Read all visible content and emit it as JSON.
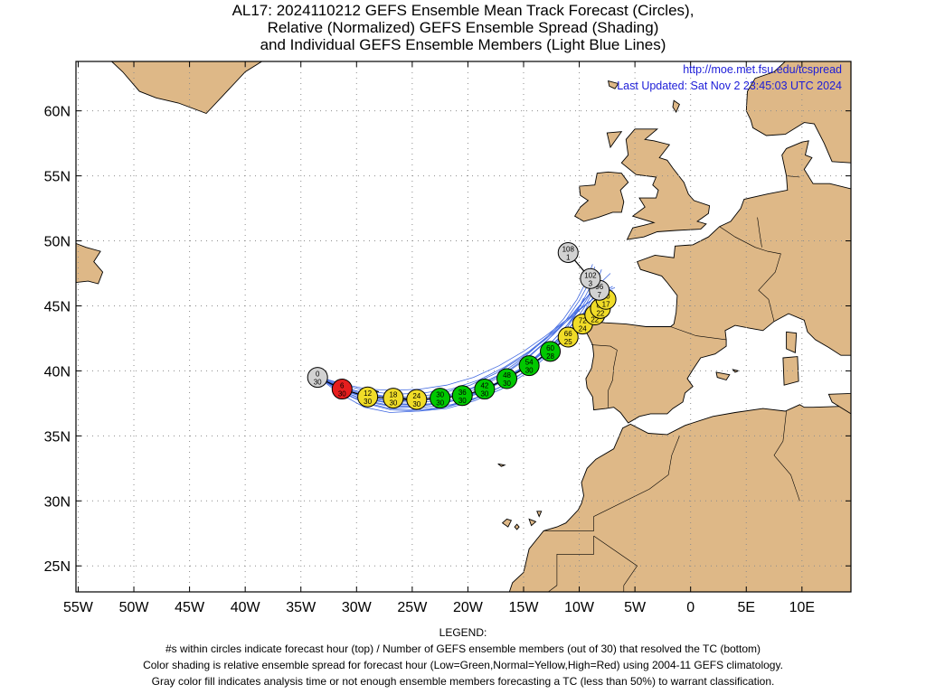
{
  "title": {
    "line1": "AL17: 2024110212 GEFS Ensemble Mean Track Forecast (Circles),",
    "line2": "Relative (Normalized) GEFS Ensemble Spread (Shading)",
    "line3": "and Individual GEFS Ensemble Members (Light Blue Lines)"
  },
  "header_info": {
    "url": "http://moe.met.fsu.edu/tcspread",
    "updated": "Last Updated: Sat Nov 2 23:45:03 UTC 2024"
  },
  "axes": {
    "lat_labels": [
      "60N",
      "55N",
      "50N",
      "45N",
      "40N",
      "35N",
      "30N",
      "25N"
    ],
    "lon_labels": [
      "55W",
      "50W",
      "45W",
      "40W",
      "35W",
      "30W",
      "25W",
      "20W",
      "15W",
      "10W",
      "5W",
      "0",
      "5E",
      "10E"
    ],
    "lat_range": [
      23,
      63.8
    ],
    "lon_range": [
      -55.2,
      14.4
    ]
  },
  "colors": {
    "land": "#deb887",
    "ocean": "#ffffff",
    "member_lines": "#4169e1",
    "green": "#00c800",
    "yellow": "#f0dc28",
    "red": "#e61e1e",
    "gray": "#d2d2d2"
  },
  "track": [
    {
      "hour": "0",
      "members": "30",
      "lat": 39.5,
      "lon": -33.5,
      "color": "gray"
    },
    {
      "hour": "6",
      "members": "30",
      "lat": 38.6,
      "lon": -31.3,
      "color": "red"
    },
    {
      "hour": "12",
      "members": "30",
      "lat": 38.0,
      "lon": -29.0,
      "color": "yellow"
    },
    {
      "hour": "18",
      "members": "30",
      "lat": 37.9,
      "lon": -26.7,
      "color": "yellow"
    },
    {
      "hour": "24",
      "members": "30",
      "lat": 37.8,
      "lon": -24.6,
      "color": "yellow"
    },
    {
      "hour": "30",
      "members": "30",
      "lat": 37.9,
      "lon": -22.5,
      "color": "green"
    },
    {
      "hour": "36",
      "members": "30",
      "lat": 38.1,
      "lon": -20.5,
      "color": "green"
    },
    {
      "hour": "42",
      "members": "30",
      "lat": 38.6,
      "lon": -18.5,
      "color": "green"
    },
    {
      "hour": "48",
      "members": "30",
      "lat": 39.4,
      "lon": -16.5,
      "color": "green"
    },
    {
      "hour": "54",
      "members": "30",
      "lat": 40.4,
      "lon": -14.5,
      "color": "green"
    },
    {
      "hour": "60",
      "members": "28",
      "lat": 41.5,
      "lon": -12.6,
      "color": "green"
    },
    {
      "hour": "66",
      "members": "25",
      "lat": 42.6,
      "lon": -11.0,
      "color": "yellow"
    },
    {
      "hour": "72",
      "members": "24",
      "lat": 43.6,
      "lon": -9.7,
      "color": "yellow"
    },
    {
      "hour": "78",
      "members": "22",
      "lat": 44.3,
      "lon": -8.6,
      "color": "yellow"
    },
    {
      "hour": "84",
      "members": "22",
      "lat": 44.8,
      "lon": -8.1,
      "color": "yellow"
    },
    {
      "hour": "90",
      "members": "17",
      "lat": 45.5,
      "lon": -7.6,
      "color": "yellow"
    },
    {
      "hour": "96",
      "members": "7",
      "lat": 46.2,
      "lon": -8.2,
      "color": "gray"
    },
    {
      "hour": "102",
      "members": "3",
      "lat": 47.1,
      "lon": -9.0,
      "color": "gray"
    },
    {
      "hour": "108",
      "members": "1",
      "lat": 49.1,
      "lon": -11.0,
      "color": "gray"
    }
  ],
  "member_tracks": [
    [
      [
        -33.6,
        39.6
      ],
      [
        -31.5,
        38.7
      ],
      [
        -29.0,
        37.9
      ],
      [
        -26.5,
        37.6
      ],
      [
        -24.0,
        37.6
      ],
      [
        -21.5,
        37.8
      ],
      [
        -19.0,
        38.4
      ],
      [
        -16.5,
        39.5
      ],
      [
        -14.0,
        40.9
      ],
      [
        -11.8,
        42.3
      ],
      [
        -10.0,
        43.7
      ],
      [
        -8.8,
        44.9
      ],
      [
        -8.0,
        45.9
      ]
    ],
    [
      [
        -33.6,
        39.6
      ],
      [
        -31.4,
        38.5
      ],
      [
        -29.0,
        37.6
      ],
      [
        -26.5,
        37.2
      ],
      [
        -24.0,
        37.2
      ],
      [
        -21.5,
        37.4
      ],
      [
        -19.0,
        38.0
      ],
      [
        -16.5,
        39.0
      ],
      [
        -14.3,
        40.3
      ],
      [
        -12.3,
        41.9
      ],
      [
        -10.8,
        43.4
      ],
      [
        -9.6,
        44.8
      ],
      [
        -8.7,
        46.2
      ]
    ],
    [
      [
        -33.6,
        39.6
      ],
      [
        -31.2,
        38.9
      ],
      [
        -28.8,
        38.4
      ],
      [
        -26.5,
        38.2
      ],
      [
        -24.0,
        38.3
      ],
      [
        -21.5,
        38.6
      ],
      [
        -19.0,
        39.3
      ],
      [
        -16.7,
        40.3
      ],
      [
        -14.5,
        41.5
      ],
      [
        -12.5,
        42.9
      ],
      [
        -10.8,
        44.2
      ],
      [
        -9.5,
        45.5
      ],
      [
        -8.3,
        46.6
      ],
      [
        -7.2,
        47.5
      ]
    ],
    [
      [
        -33.6,
        39.6
      ],
      [
        -31.6,
        38.3
      ],
      [
        -29.3,
        37.2
      ],
      [
        -27.0,
        36.8
      ],
      [
        -24.5,
        36.9
      ],
      [
        -22.0,
        37.2
      ],
      [
        -19.5,
        37.8
      ],
      [
        -17.0,
        38.8
      ],
      [
        -14.8,
        40.0
      ],
      [
        -13.0,
        41.4
      ],
      [
        -11.5,
        42.8
      ],
      [
        -10.4,
        44.2
      ],
      [
        -9.6,
        45.6
      ]
    ],
    [
      [
        -33.6,
        39.6
      ],
      [
        -31.3,
        38.8
      ],
      [
        -29.0,
        38.2
      ],
      [
        -26.8,
        37.9
      ],
      [
        -24.4,
        37.9
      ],
      [
        -22.0,
        38.1
      ],
      [
        -19.6,
        38.7
      ],
      [
        -17.2,
        39.7
      ],
      [
        -15.0,
        41.0
      ],
      [
        -13.0,
        42.5
      ],
      [
        -11.4,
        44.0
      ],
      [
        -10.2,
        45.5
      ],
      [
        -9.3,
        47.0
      ],
      [
        -8.8,
        48.2
      ]
    ],
    [
      [
        -33.6,
        39.6
      ],
      [
        -31.5,
        38.6
      ],
      [
        -29.2,
        37.9
      ],
      [
        -26.8,
        37.5
      ],
      [
        -24.3,
        37.4
      ],
      [
        -21.8,
        37.6
      ],
      [
        -19.3,
        38.2
      ],
      [
        -16.9,
        39.2
      ],
      [
        -14.6,
        40.5
      ],
      [
        -12.6,
        41.9
      ],
      [
        -10.9,
        43.3
      ],
      [
        -9.5,
        44.5
      ],
      [
        -8.3,
        45.5
      ],
      [
        -7.0,
        46.2
      ]
    ],
    [
      [
        -33.6,
        39.6
      ],
      [
        -31.4,
        38.7
      ],
      [
        -29.1,
        38.0
      ],
      [
        -26.7,
        37.7
      ],
      [
        -24.2,
        37.7
      ],
      [
        -21.7,
        38.0
      ],
      [
        -19.2,
        38.6
      ],
      [
        -16.8,
        39.7
      ],
      [
        -14.6,
        41.0
      ],
      [
        -12.8,
        42.4
      ],
      [
        -11.2,
        43.9
      ],
      [
        -10.0,
        45.4
      ],
      [
        -9.1,
        46.8
      ],
      [
        -8.6,
        48.0
      ]
    ],
    [
      [
        -33.6,
        39.6
      ],
      [
        -31.2,
        38.6
      ],
      [
        -28.9,
        37.8
      ],
      [
        -26.4,
        37.4
      ],
      [
        -23.9,
        37.4
      ],
      [
        -21.4,
        37.7
      ],
      [
        -18.9,
        38.4
      ],
      [
        -16.5,
        39.4
      ],
      [
        -14.4,
        40.7
      ],
      [
        -12.6,
        42.1
      ],
      [
        -11.0,
        43.6
      ],
      [
        -9.7,
        45.0
      ],
      [
        -8.6,
        46.5
      ],
      [
        -8.0,
        47.8
      ]
    ],
    [
      [
        -33.6,
        39.6
      ],
      [
        -31.5,
        38.8
      ],
      [
        -29.3,
        38.3
      ],
      [
        -27.0,
        38.0
      ],
      [
        -24.6,
        38.0
      ],
      [
        -22.2,
        38.3
      ],
      [
        -19.8,
        38.9
      ],
      [
        -17.5,
        39.8
      ],
      [
        -15.2,
        41.0
      ],
      [
        -13.2,
        42.3
      ],
      [
        -11.4,
        43.6
      ],
      [
        -9.8,
        44.8
      ],
      [
        -8.4,
        45.8
      ],
      [
        -7.0,
        46.5
      ]
    ],
    [
      [
        -33.6,
        39.6
      ],
      [
        -31.6,
        38.5
      ],
      [
        -29.4,
        37.6
      ],
      [
        -27.0,
        37.1
      ],
      [
        -24.6,
        37.0
      ],
      [
        -22.1,
        37.2
      ],
      [
        -19.6,
        37.8
      ],
      [
        -17.2,
        38.7
      ],
      [
        -15.0,
        39.9
      ],
      [
        -13.0,
        41.2
      ],
      [
        -11.3,
        42.6
      ],
      [
        -9.9,
        44.0
      ],
      [
        -8.8,
        45.3
      ]
    ],
    [
      [
        -33.6,
        39.6
      ],
      [
        -31.3,
        38.7
      ],
      [
        -29.0,
        38.1
      ],
      [
        -26.6,
        37.8
      ],
      [
        -24.1,
        37.8
      ],
      [
        -21.6,
        38.1
      ],
      [
        -19.1,
        38.8
      ],
      [
        -16.6,
        39.9
      ],
      [
        -14.3,
        41.3
      ],
      [
        -12.3,
        42.8
      ],
      [
        -10.6,
        44.3
      ],
      [
        -9.2,
        45.8
      ],
      [
        -8.1,
        47.2
      ]
    ],
    [
      [
        -33.6,
        39.6
      ],
      [
        -31.4,
        38.5
      ],
      [
        -29.1,
        37.7
      ],
      [
        -26.7,
        37.3
      ],
      [
        -24.2,
        37.3
      ],
      [
        -21.7,
        37.6
      ],
      [
        -19.2,
        38.2
      ],
      [
        -16.8,
        39.2
      ],
      [
        -14.6,
        40.5
      ],
      [
        -12.7,
        42.0
      ],
      [
        -11.1,
        43.5
      ],
      [
        -9.9,
        45.0
      ],
      [
        -9.0,
        46.5
      ],
      [
        -8.4,
        47.6
      ]
    ],
    [
      [
        -33.6,
        39.6
      ],
      [
        -31.3,
        39.0
      ],
      [
        -29.0,
        38.6
      ],
      [
        -26.7,
        38.5
      ],
      [
        -24.3,
        38.6
      ],
      [
        -21.9,
        38.9
      ],
      [
        -19.5,
        39.5
      ],
      [
        -17.2,
        40.4
      ],
      [
        -15.0,
        41.5
      ],
      [
        -13.0,
        42.7
      ],
      [
        -11.2,
        43.9
      ],
      [
        -9.6,
        45.0
      ],
      [
        -8.2,
        45.9
      ],
      [
        -6.8,
        46.4
      ]
    ],
    [
      [
        -33.6,
        39.6
      ],
      [
        -31.5,
        38.4
      ],
      [
        -29.2,
        37.5
      ],
      [
        -26.9,
        37.0
      ],
      [
        -24.4,
        36.9
      ],
      [
        -21.9,
        37.1
      ],
      [
        -19.4,
        37.7
      ],
      [
        -17.0,
        38.6
      ],
      [
        -14.8,
        39.8
      ],
      [
        -12.8,
        41.2
      ],
      [
        -11.1,
        42.7
      ],
      [
        -9.8,
        44.2
      ],
      [
        -8.8,
        45.6
      ],
      [
        -8.0,
        46.7
      ]
    ]
  ],
  "legend": {
    "heading": "LEGEND:",
    "line1": "#s within circles indicate forecast hour (top) / Number of GEFS ensemble members (out of 30) that resolved the TC (bottom)",
    "line2": "Color shading is relative ensemble spread for forecast hour (Low=Green,Normal=Yellow,High=Red) using 2004-11 GEFS climatology.",
    "line3": "Gray color fill indicates analysis time or not enough ensemble members forecasting a TC (less than 50%) to warrant classification."
  }
}
